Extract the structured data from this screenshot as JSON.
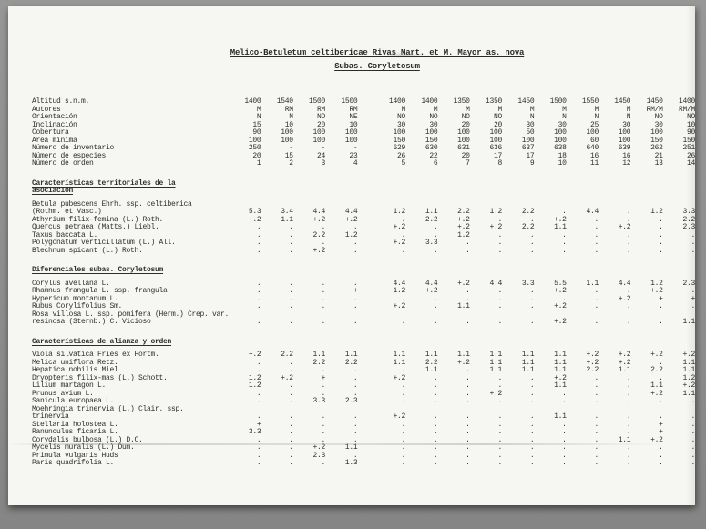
{
  "document": {
    "title": "Melico-Betuletum celtibericae Rivas Mart. et M. Mayor as. nova",
    "subtitle": "Subas. Coryletosum"
  },
  "colors": {
    "scanner_background": "#8e8e8e",
    "page": "#f6f6f2",
    "ink": "#2e2e2e"
  },
  "absent_mark": ".",
  "header_rows": [
    {
      "label": "Altitud s.n.m.",
      "values": [
        "1400",
        "1540",
        "1500",
        "1500",
        "1400",
        "1400",
        "1350",
        "1350",
        "1450",
        "1500",
        "1550",
        "1450",
        "1450",
        "1400"
      ]
    },
    {
      "label": "Autores",
      "values": [
        "M",
        "RM",
        "RM",
        "RM",
        "M",
        "M",
        "M",
        "M",
        "M",
        "M",
        "M",
        "M",
        "RM/M",
        "RM/M"
      ]
    },
    {
      "label": "Orientación",
      "values": [
        "N",
        "N",
        "NO",
        "NE",
        "NO",
        "NO",
        "NO",
        "NO",
        "N",
        "N",
        "N",
        "N",
        "NO",
        "NO"
      ]
    },
    {
      "label": "Inclinación",
      "values": [
        "15",
        "10",
        "20",
        "10",
        "30",
        "30",
        "20",
        "20",
        "30",
        "30",
        "25",
        "30",
        "30",
        "10"
      ]
    },
    {
      "label": "Cobertura",
      "values": [
        "90",
        "100",
        "100",
        "100",
        "100",
        "100",
        "100",
        "100",
        "50",
        "100",
        "100",
        "100",
        "100",
        "90"
      ]
    },
    {
      "label": "Area mínima",
      "values": [
        "100",
        "100",
        "100",
        "100",
        "150",
        "150",
        "100",
        "100",
        "100",
        "100",
        "60",
        "100",
        "150",
        "150"
      ]
    },
    {
      "label": "Número de inventario",
      "values": [
        "250",
        "-",
        "-",
        "-",
        "629",
        "630",
        "631",
        "636",
        "637",
        "638",
        "640",
        "639",
        "262",
        "251"
      ]
    },
    {
      "label": "Número de especies",
      "values": [
        "20",
        "15",
        "24",
        "23",
        "26",
        "22",
        "20",
        "17",
        "17",
        "18",
        "16",
        "16",
        "21",
        "26"
      ]
    },
    {
      "label": "Número de orden",
      "values": [
        "1",
        "2",
        "3",
        "4",
        "5",
        "6",
        "7",
        "8",
        "9",
        "10",
        "11",
        "12",
        "13",
        "14"
      ]
    }
  ],
  "sections": [
    {
      "heading_lines": [
        "Características territoriales de la",
        "asociación"
      ],
      "species": [
        {
          "name_lines": [
            "Betula pubescens Ehrh. ssp. celtiberica",
            "(Rothm. et Vasc.)"
          ],
          "values": [
            "5.3",
            "3.4",
            "4.4",
            "4.4",
            "1.2",
            "1.1",
            "2.2",
            "1.2",
            "2.2",
            ".",
            "4.4",
            ".",
            "1.2",
            "3.3"
          ]
        },
        {
          "name_lines": [
            "Athyrium filix-femina (L.) Roth."
          ],
          "values": [
            "+.2",
            "1.1",
            "+.2",
            "+.2",
            ".",
            "2.2",
            "+.2",
            ".",
            ".",
            "+.2",
            ".",
            ".",
            ".",
            "2.2"
          ]
        },
        {
          "name_lines": [
            "Quercus petraea (Matts.) Liebl."
          ],
          "values": [
            ".",
            ".",
            ".",
            ".",
            "+.2",
            ".",
            "+.2",
            "+.2",
            "2.2",
            "1.1",
            ".",
            "+.2",
            ".",
            "2.3"
          ]
        },
        {
          "name_lines": [
            "Taxus baccata L."
          ],
          "values": [
            ".",
            ".",
            "2.2",
            "1.2",
            ".",
            ".",
            "1.2",
            ".",
            ".",
            ".",
            ".",
            ".",
            ".",
            "."
          ]
        },
        {
          "name_lines": [
            "Polygonatum verticillatum (L.) All."
          ],
          "values": [
            ".",
            ".",
            ".",
            ".",
            "+.2",
            "3.3",
            ".",
            ".",
            ".",
            ".",
            ".",
            ".",
            ".",
            "."
          ]
        },
        {
          "name_lines": [
            "Blechnum spicant (L.) Roth."
          ],
          "values": [
            ".",
            ".",
            "+.2",
            ".",
            ".",
            ".",
            ".",
            ".",
            ".",
            ".",
            ".",
            ".",
            ".",
            "."
          ]
        }
      ]
    },
    {
      "heading_lines": [
        "Diferenciales subas. Coryletosum"
      ],
      "species": [
        {
          "name_lines": [
            "Corylus avellana L."
          ],
          "values": [
            ".",
            ".",
            ".",
            ".",
            "4.4",
            "4.4",
            "+.2",
            "4.4",
            "3.3",
            "5.5",
            "1.1",
            "4.4",
            "1.2",
            "2.3"
          ]
        },
        {
          "name_lines": [
            "Rhamnus frangula L. ssp. frangula"
          ],
          "values": [
            ".",
            ".",
            ".",
            "+",
            "1.2",
            "+.2",
            ".",
            ".",
            ".",
            "+.2",
            ".",
            ".",
            "+.2",
            "."
          ]
        },
        {
          "name_lines": [
            "Hypericum montanum L."
          ],
          "values": [
            ".",
            ".",
            ".",
            ".",
            ".",
            ".",
            ".",
            ".",
            ".",
            ".",
            ".",
            "+.2",
            "+",
            "+"
          ]
        },
        {
          "name_lines": [
            "Rubus Corylifolius Sm."
          ],
          "values": [
            ".",
            ".",
            ".",
            ".",
            "+.2",
            ".",
            "1.1",
            ".",
            ".",
            "+.2",
            ".",
            ".",
            ".",
            "."
          ]
        },
        {
          "name_lines": [
            "Rosa villosa L. ssp. pomifera (Herm.) Crep. var.",
            "resinosa (Sternb.) C. Vicioso"
          ],
          "values": [
            ".",
            ".",
            ".",
            ".",
            ".",
            ".",
            ".",
            ".",
            ".",
            "+.2",
            ".",
            ".",
            ".",
            "1.1"
          ]
        }
      ]
    },
    {
      "heading_lines": [
        "Características de alianza y orden"
      ],
      "species": [
        {
          "name_lines": [
            "Viola silvatica Fries ex Hortm."
          ],
          "values": [
            "+.2",
            "2.2",
            "1.1",
            "1.1",
            "1.1",
            "1.1",
            "1.1",
            "1.1",
            "1.1",
            "1.1",
            "+.2",
            "+.2",
            "+.2",
            "+.2"
          ]
        },
        {
          "name_lines": [
            "Melica uniflora Retz."
          ],
          "values": [
            ".",
            ".",
            "2.2",
            "2.2",
            "1.1",
            "2.2",
            "+.2",
            "1.1",
            "1.1",
            "1.1",
            "+.2",
            "+.2",
            ".",
            "1.1"
          ]
        },
        {
          "name_lines": [
            "Hepatica nobilis Miel"
          ],
          "values": [
            ".",
            ".",
            ".",
            ".",
            ".",
            "1.1",
            ".",
            "1.1",
            "1.1",
            "1.1",
            "2.2",
            "1.1",
            "2.2",
            "1.1"
          ]
        },
        {
          "name_lines": [
            "Dryopteris filix-mas (L.) Schott."
          ],
          "values": [
            "1.2",
            "+.2",
            "+",
            ".",
            "+.2",
            ".",
            ".",
            ".",
            ".",
            "+.2",
            ".",
            ".",
            ".",
            "1.2"
          ]
        },
        {
          "name_lines": [
            "Lilium martagon L."
          ],
          "values": [
            "1.2",
            ".",
            ".",
            ".",
            ".",
            ".",
            ".",
            ".",
            ".",
            "1.1",
            ".",
            ".",
            "1.1",
            "+.2"
          ]
        },
        {
          "name_lines": [
            "Prunus avium L."
          ],
          "values": [
            ".",
            ".",
            ".",
            ".",
            ".",
            ".",
            ".",
            "+.2",
            ".",
            ".",
            ".",
            ".",
            "+.2",
            "1.1"
          ]
        },
        {
          "name_lines": [
            "Sanicula europaea L."
          ],
          "values": [
            ".",
            ".",
            "3.3",
            "2.3",
            ".",
            ".",
            ".",
            ".",
            ".",
            ".",
            ".",
            ".",
            ".",
            "."
          ]
        },
        {
          "name_lines": [
            "Moehringia trinervia (L.) Clair. ssp.",
            "trinervia"
          ],
          "values": [
            ".",
            ".",
            ".",
            ".",
            "+.2",
            ".",
            ".",
            ".",
            ".",
            "1.1",
            ".",
            ".",
            ".",
            "."
          ]
        },
        {
          "name_lines": [
            "Stellaria holostea L."
          ],
          "values": [
            "+",
            ".",
            ".",
            ".",
            ".",
            ".",
            ".",
            ".",
            ".",
            ".",
            ".",
            ".",
            "+",
            "."
          ]
        },
        {
          "name_lines": [
            "Ranunculus ficaria L."
          ],
          "values": [
            "3.3",
            ".",
            ".",
            ".",
            ".",
            ".",
            ".",
            ".",
            ".",
            ".",
            ".",
            ".",
            "+",
            "."
          ]
        },
        {
          "name_lines": [
            "Corydalis bulbosa (L.) D.C."
          ],
          "values": [
            ".",
            ".",
            ".",
            ".",
            ".",
            ".",
            ".",
            ".",
            ".",
            ".",
            ".",
            "1.1",
            "+.2",
            "."
          ]
        },
        {
          "name_lines": [
            "Mycelis muralis (L.) Dum."
          ],
          "values": [
            ".",
            ".",
            "+.2",
            "1.1",
            ".",
            ".",
            ".",
            ".",
            ".",
            ".",
            ".",
            ".",
            ".",
            "."
          ]
        },
        {
          "name_lines": [
            "Primula vulgaris Huds"
          ],
          "values": [
            ".",
            ".",
            "2.3",
            ".",
            ".",
            ".",
            ".",
            ".",
            ".",
            ".",
            ".",
            ".",
            ".",
            "."
          ]
        },
        {
          "name_lines": [
            "Paris quadrifolia L."
          ],
          "values": [
            ".",
            ".",
            ".",
            "1.3",
            ".",
            ".",
            ".",
            ".",
            ".",
            ".",
            ".",
            ".",
            ".",
            "."
          ]
        }
      ]
    }
  ]
}
